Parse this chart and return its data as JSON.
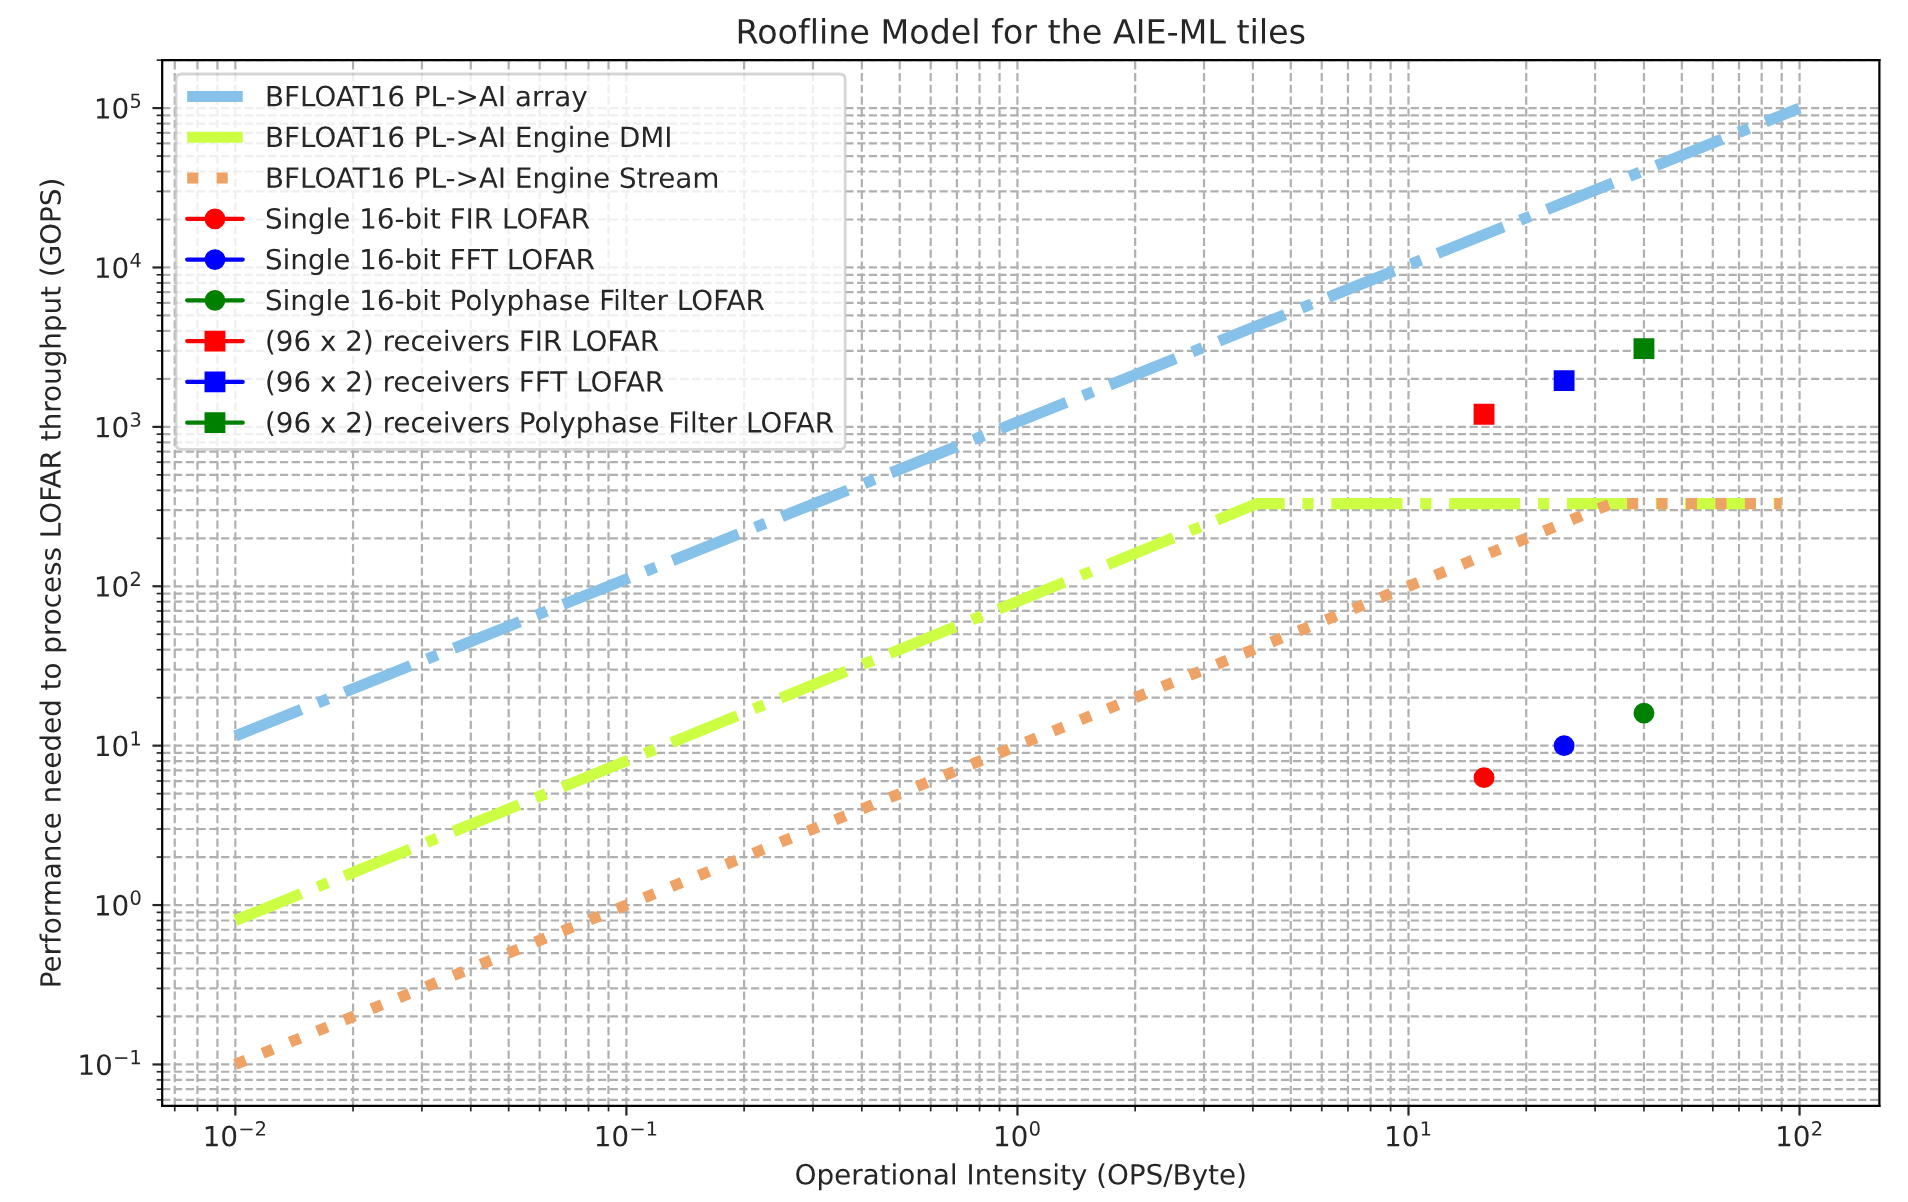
{
  "chart_data": {
    "type": "line",
    "title": "Roofline Model for the AIE-ML tiles",
    "xlabel": "Operational Intensity (OPS/Byte)",
    "ylabel": "Performance needed to process LOFAR throughput (GOPS)",
    "log": "xy",
    "xlim": [
      0.0065,
      160
    ],
    "ylim": [
      0.055,
      200000
    ],
    "xticks": [
      {
        "value": 0.01,
        "label": "10$^{−2}$"
      },
      {
        "value": 0.1,
        "label": "10$^{−1}$"
      },
      {
        "value": 1,
        "label": "10$^{0}$"
      },
      {
        "value": 10,
        "label": "10$^{1}$"
      },
      {
        "value": 100,
        "label": "10$^{2}$"
      }
    ],
    "yticks": [
      {
        "value": 0.1,
        "label": "10$^{−1}$"
      },
      {
        "value": 1,
        "label": "10$^{0}$"
      },
      {
        "value": 10,
        "label": "10$^{1}$"
      },
      {
        "value": 100,
        "label": "10$^{2}$"
      },
      {
        "value": 1000,
        "label": "10$^{3}$"
      },
      {
        "value": 10000,
        "label": "10$^{4}$"
      },
      {
        "value": 100000,
        "label": "10$^{5}$"
      }
    ],
    "grid": true,
    "legend": "top left",
    "series": [
      {
        "name": "BFLOAT16 PL->AI array",
        "color": "#85c1e9",
        "line_style": "dashdot",
        "marker": "none",
        "x": [
          0.01,
          100
        ],
        "values": [
          11.5,
          100000
        ]
      },
      {
        "name": "BFLOAT16 PL->AI Engine DMI",
        "color": "#ccff44",
        "line_style": "dashdot",
        "marker": "none",
        "x": [
          0.01,
          4.1,
          90
        ],
        "values": [
          0.8,
          330,
          330
        ]
      },
      {
        "name": "BFLOAT16 PL->AI Engine Stream",
        "color": "#eea266",
        "line_style": "dotted",
        "marker": "none",
        "x": [
          0.01,
          33,
          90
        ],
        "values": [
          0.1,
          330,
          330
        ]
      },
      {
        "name": "Single 16-bit FIR LOFAR",
        "color": "#ff0000",
        "line_style": "solid",
        "marker": "circle",
        "x": [
          15.6
        ],
        "values": [
          6.3
        ]
      },
      {
        "name": "Single 16-bit FFT LOFAR",
        "color": "#0000ff",
        "line_style": "solid",
        "marker": "circle",
        "x": [
          25
        ],
        "values": [
          10
        ]
      },
      {
        "name": "Single 16-bit Polyphase Filter LOFAR",
        "color": "#008000",
        "line_style": "solid",
        "marker": "circle",
        "x": [
          40
        ],
        "values": [
          16
        ]
      },
      {
        "name": "(96 x 2) receivers FIR LOFAR",
        "color": "#ff0000",
        "line_style": "solid",
        "marker": "square",
        "x": [
          15.6
        ],
        "values": [
          1200
        ]
      },
      {
        "name": "(96 x 2) receivers FFT LOFAR",
        "color": "#0000ff",
        "line_style": "solid",
        "marker": "square",
        "x": [
          25
        ],
        "values": [
          1950
        ]
      },
      {
        "name": "(96 x 2) receivers Polyphase Filter LOFAR",
        "color": "#008000",
        "line_style": "solid",
        "marker": "square",
        "x": [
          40
        ],
        "values": [
          3100
        ]
      }
    ]
  }
}
